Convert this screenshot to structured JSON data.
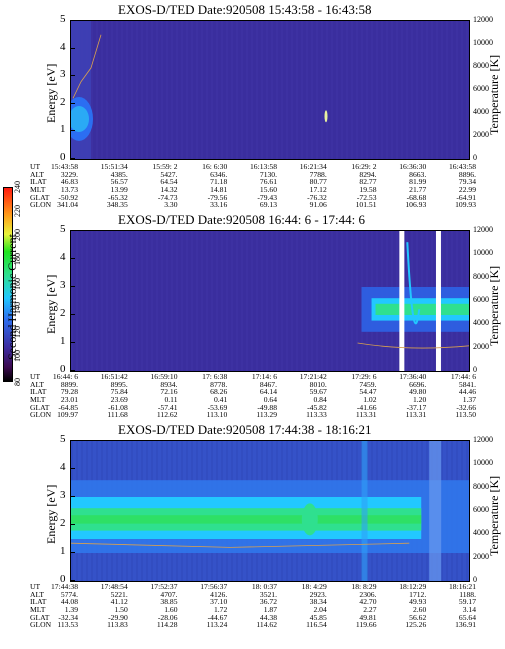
{
  "colorbar": {
    "label": "Second Harmonic Current",
    "ticks": [
      "80",
      "100",
      "120",
      "140",
      "160",
      "180",
      "200",
      "220",
      "240"
    ]
  },
  "panels": [
    {
      "title": "EXOS-D/TED   Date:920508   15:43:58 - 16:43:58",
      "ylabel": "Energy [eV]",
      "rlabel": "Temperature [K]",
      "yticks": [
        "0",
        "1",
        "2",
        "3",
        "4",
        "5"
      ],
      "rticks": [
        "0",
        "2000",
        "4000",
        "6000",
        "8000",
        "10000",
        "12000"
      ],
      "orbit_labels": [
        "UT",
        "ALT",
        "ILAT",
        "MLT",
        "GLAT",
        "GLON"
      ],
      "orbit": [
        [
          "15:43:58",
          "3229.",
          "46.83",
          "13.73",
          "-50.92",
          "341.04"
        ],
        [
          "15:51:34",
          "4385.",
          "56.57",
          "13.99",
          "-65.32",
          "348.35"
        ],
        [
          "15:59: 2",
          "5427.",
          "64.54",
          "14.32",
          "-74.73",
          "3.30"
        ],
        [
          "16: 6:30",
          "6346.",
          "71.18",
          "14.81",
          "-79.56",
          "33.16"
        ],
        [
          "16:13:58",
          "7130.",
          "76.61",
          "15.60",
          "-79.43",
          "69.13"
        ],
        [
          "16:21:34",
          "7788.",
          "80.77",
          "17.12",
          "-76.32",
          "91.06"
        ],
        [
          "16:29: 2",
          "8294.",
          "82.77",
          "19.58",
          "-72.53",
          "101.51"
        ],
        [
          "16:36:30",
          "8663.",
          "81.99",
          "21.77",
          "-68.68",
          "106.93"
        ],
        [
          "16:43:58",
          "8896.",
          "79.34",
          "22.99",
          "-64.91",
          "109.93"
        ]
      ]
    },
    {
      "title": "EXOS-D/TED   Date:920508   16:44: 6 - 17:44: 6",
      "ylabel": "Energy [eV]",
      "rlabel": "Temperature [K]",
      "yticks": [
        "0",
        "1",
        "2",
        "3",
        "4",
        "5"
      ],
      "rticks": [
        "0",
        "2000",
        "4000",
        "6000",
        "8000",
        "10000",
        "12000"
      ],
      "orbit_labels": [
        "UT",
        "ALT",
        "ILAT",
        "MLT",
        "GLAT",
        "GLON"
      ],
      "orbit": [
        [
          "16:44: 6",
          "8899.",
          "79.28",
          "23.01",
          "-64.85",
          "109.97"
        ],
        [
          "16:51:42",
          "8995.",
          "75.84",
          "23.69",
          "-61.08",
          "111.68"
        ],
        [
          "16:59:10",
          "8934.",
          "72.16",
          "0.11",
          "-57.41",
          "112.62"
        ],
        [
          "17: 6:38",
          "8778.",
          "68.26",
          "0.41",
          "-53.69",
          "113.10"
        ],
        [
          "17:14: 6",
          "8467.",
          "64.14",
          "0.64",
          "-49.88",
          "113.29"
        ],
        [
          "17:21:42",
          "8010.",
          "59.67",
          "0.84",
          "-45.82",
          "113.33"
        ],
        [
          "17:29: 6",
          "7459.",
          "54.47",
          "1.02",
          "-41.66",
          "113.31"
        ],
        [
          "17:36:40",
          "6696.",
          "49.80",
          "1.20",
          "-37.17",
          "113.31"
        ],
        [
          "17:44: 6",
          "5841.",
          "44.46",
          "1.37",
          "-32.66",
          "113.50"
        ]
      ]
    },
    {
      "title": "EXOS-D/TED   Date:920508   17:44:38 - 18:16:21",
      "ylabel": "Energy [eV]",
      "rlabel": "Temperature [K]",
      "yticks": [
        "0",
        "1",
        "2",
        "3",
        "4",
        "5"
      ],
      "rticks": [
        "0",
        "2000",
        "4000",
        "6000",
        "8000",
        "10000",
        "12000"
      ],
      "orbit_labels": [
        "UT",
        "ALT",
        "ILAT",
        "MLT",
        "GLAT",
        "GLON"
      ],
      "orbit": [
        [
          "17:44:38",
          "5774.",
          "44.08",
          "1.39",
          "-32.34",
          "113.53"
        ],
        [
          "17:48:54",
          "5221.",
          "41.12",
          "1.50",
          "-29.90",
          "113.83"
        ],
        [
          "17:52:37",
          "4707.",
          "38.85",
          "1.60",
          "-28.06",
          "114.28"
        ],
        [
          "17:56:37",
          "4126.",
          "37.10",
          "1.72",
          "-44.67",
          "113.24"
        ],
        [
          "18: 0:37",
          "3521.",
          "36.72",
          "1.87",
          "44.38",
          "114.62"
        ],
        [
          "18: 4:29",
          "2923.",
          "38.34",
          "2.04",
          "45.85",
          "116.54"
        ],
        [
          "18: 8:29",
          "2306.",
          "42.70",
          "2.27",
          "49.81",
          "119.66"
        ],
        [
          "18:12:29",
          "1712.",
          "49.93",
          "2.60",
          "56.62",
          "125.26"
        ],
        [
          "18:16:21",
          "1188.",
          "59.17",
          "3.14",
          "65.64",
          "136.91"
        ]
      ]
    }
  ],
  "chart_data": [
    {
      "type": "heatmap",
      "title": "EXOS-D/TED   Date:920508   15:43:58 - 16:43:58",
      "xlabel": "UT",
      "ylabel": "Energy [eV]",
      "y2label": "Temperature [K]",
      "ylim": [
        0,
        5
      ],
      "y2lim": [
        0,
        12000
      ],
      "x_ticks": [
        "15:43:58",
        "15:51:34",
        "15:59: 2",
        "16: 6:30",
        "16:13:58",
        "16:21:34",
        "16:29: 2",
        "16:36:30",
        "16:43:58"
      ],
      "colorbar_range": [
        80,
        240
      ],
      "background_level": 110,
      "features": [
        {
          "desc": "band",
          "x_start": "15:43:58",
          "x_end": "15:45:30",
          "energy_center": 1.5,
          "level": 170
        }
      ]
    },
    {
      "type": "heatmap",
      "title": "EXOS-D/TED   Date:920508   16:44: 6 - 17:44: 6",
      "xlabel": "UT",
      "ylabel": "Energy [eV]",
      "y2label": "Temperature [K]",
      "ylim": [
        0,
        5
      ],
      "y2lim": [
        0,
        12000
      ],
      "x_ticks": [
        "16:44: 6",
        "16:51:42",
        "16:59:10",
        "17: 6:38",
        "17:14: 6",
        "17:21:42",
        "17:29: 6",
        "17:36:40",
        "17:44: 6"
      ],
      "colorbar_range": [
        80,
        240
      ],
      "background_level": 115,
      "features": [
        {
          "desc": "band",
          "x_start": "17:29: 6",
          "x_end": "17:44: 6",
          "energy_center": 2.2,
          "level": 175
        }
      ]
    },
    {
      "type": "heatmap",
      "title": "EXOS-D/TED   Date:920508   17:44:38 - 18:16:21",
      "xlabel": "UT",
      "ylabel": "Energy [eV]",
      "y2label": "Temperature [K]",
      "ylim": [
        0,
        5
      ],
      "y2lim": [
        0,
        12000
      ],
      "x_ticks": [
        "17:44:38",
        "17:48:54",
        "17:52:37",
        "17:56:37",
        "18: 0:37",
        "18: 4:29",
        "18: 8:29",
        "18:12:29",
        "18:16:21"
      ],
      "colorbar_range": [
        80,
        240
      ],
      "background_level": 135,
      "features": [
        {
          "desc": "band",
          "x_start": "17:44:38",
          "x_end": "18:12:29",
          "energy_center": 2.2,
          "level": 185
        }
      ]
    }
  ],
  "colors": {
    "background_plot": "#3a2e9e",
    "band_green": "#1fe39a",
    "band_cyan": "#2fd6ff",
    "band_core": "#32e08a"
  }
}
